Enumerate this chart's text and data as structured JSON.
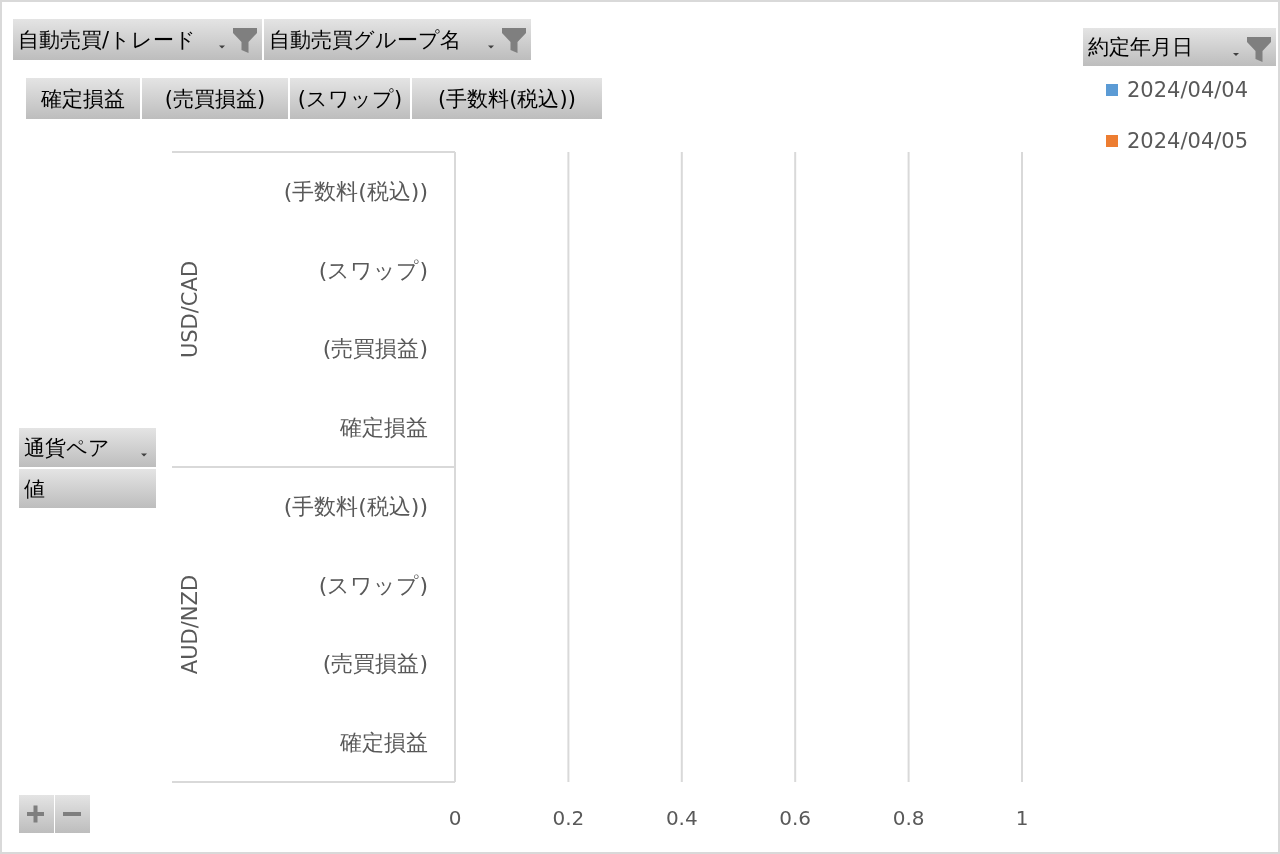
{
  "chart_data": {
    "type": "bar",
    "orientation": "horizontal",
    "categories": [
      "(手数料(税込))",
      "(スワップ)",
      "(売買損益)",
      "確定損益",
      "(手数料(税込))",
      "(スワップ)",
      "(売買損益)",
      "確定損益"
    ],
    "series": [
      {
        "name": "2024/04/04",
        "color": "#5b9bd5",
        "values": [
          null,
          null,
          null,
          null,
          null,
          null,
          null,
          null
        ]
      },
      {
        "name": "2024/04/05",
        "color": "#ed7d31",
        "values": [
          null,
          null,
          null,
          null,
          null,
          null,
          null,
          null
        ]
      }
    ],
    "xlim": [
      0,
      1
    ],
    "xticks": [
      0,
      0.2,
      0.4,
      0.6,
      0.8,
      1
    ],
    "grid": "x",
    "legend": "right",
    "legend_title": "約定年月日",
    "annotations": [
      "自動売買/トレード",
      "自動売買グループ名",
      "確定損益",
      "(売買損益)",
      "(スワップ)",
      "(手数料(税込))",
      "通貨ペア",
      "値",
      "USD/CAD",
      "AUD/NZD"
    ]
  }
}
